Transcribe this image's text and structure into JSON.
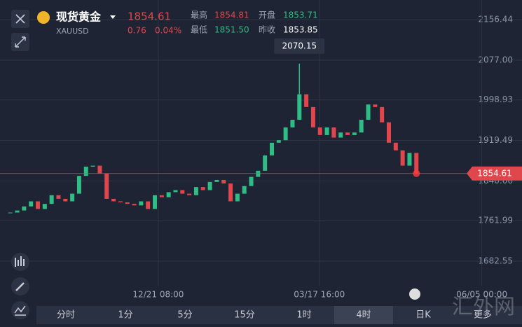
{
  "header": {
    "title": "现货黄金",
    "symbol": "XAUUSD",
    "price": "1854.61",
    "change": "0.76",
    "change_pct": "0.04%",
    "stats": [
      {
        "label": "最高",
        "value": "1854.81"
      },
      {
        "label": "开盘",
        "value": "1853.71"
      },
      {
        "label": "最低",
        "value": "1851.50"
      },
      {
        "label": "昨收",
        "value": "1853.85"
      }
    ]
  },
  "chart_data": {
    "type": "candlestick",
    "up_color": "#2ebd85",
    "down_color": "#e0474c",
    "values": [
      1778,
      1782,
      1790,
      1800,
      1785,
      1795,
      1812,
      1805,
      1800,
      1815,
      1850,
      1868,
      1870,
      1855,
      1805,
      1800,
      1798,
      1795,
      1792,
      1800,
      1785,
      1812,
      1808,
      1818,
      1822,
      1815,
      1812,
      1828,
      1822,
      1838,
      1842,
      1835,
      1800,
      1815,
      1830,
      1848,
      1860,
      1890,
      1915,
      1920,
      1945,
      1960,
      2010,
      1985,
      1945,
      1930,
      1945,
      1925,
      1935,
      1930,
      1935,
      1960,
      1990,
      1985,
      1955,
      1915,
      1900,
      1870,
      1895,
      1854.61
    ],
    "xlim": [
      -1.5,
      66.2
    ],
    "ylim": [
      1634.5,
      2195
    ],
    "yticks": [
      2156.44,
      {
        "value": 2077.0,
        "label": "2077.00"
      },
      1998.93,
      1919.49,
      1840.06,
      1761.99,
      1682.55
    ],
    "xticks": [
      {
        "value": 21.5,
        "label": "12/21 08:00"
      },
      {
        "value": 44.9,
        "label": "03/17 16:00"
      },
      {
        "value": 68.5,
        "label": "06/05 00:00"
      }
    ],
    "peak": {
      "x": 42,
      "value": 2070.15
    },
    "last_price": 1854.61,
    "grid": true
  },
  "tabs": [
    "分时",
    "1分",
    "5分",
    "15分",
    "1时",
    "4时",
    "日K",
    "更多"
  ],
  "active_tab": 5,
  "watermark": "汇外网"
}
